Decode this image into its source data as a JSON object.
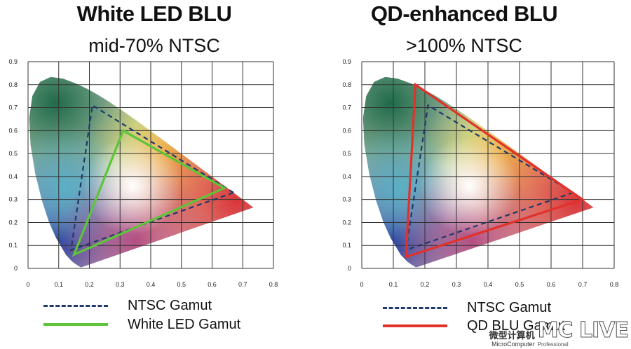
{
  "chart_data": [
    {
      "type": "scatter",
      "title": "White LED BLU",
      "subtitle": "mid-70% NTSC",
      "xlabel": "",
      "ylabel": "",
      "xlim": [
        0,
        0.8
      ],
      "ylim": [
        0,
        0.9
      ],
      "x_ticks": [
        "0",
        "0.1",
        "0.2",
        "0.3",
        "0.4",
        "0.5",
        "0.6",
        "0.7",
        "0.8"
      ],
      "y_ticks": [
        "0",
        "0.1",
        "0.2",
        "0.3",
        "0.4",
        "0.5",
        "0.6",
        "0.7",
        "0.8",
        "0.9"
      ],
      "grid": true,
      "series": [
        {
          "name": "NTSC Gamut",
          "style": "dashed",
          "color": "#1f3a6b",
          "points": [
            [
              0.67,
              0.33
            ],
            [
              0.21,
              0.71
            ],
            [
              0.14,
              0.08
            ]
          ]
        },
        {
          "name": "White LED Gamut",
          "style": "solid",
          "color": "#5fc43a",
          "points": [
            [
              0.64,
              0.35
            ],
            [
              0.31,
              0.6
            ],
            [
              0.15,
              0.06
            ]
          ]
        }
      ],
      "legend_position": "bottom"
    },
    {
      "type": "scatter",
      "title": "QD-enhanced BLU",
      "subtitle": ">100% NTSC",
      "xlabel": "",
      "ylabel": "",
      "xlim": [
        0,
        0.8
      ],
      "ylim": [
        0,
        0.9
      ],
      "x_ticks": [
        "0",
        "0.1",
        "0.2",
        "0.3",
        "0.4",
        "0.5",
        "0.6",
        "0.7",
        "0.8"
      ],
      "y_ticks": [
        "0",
        "0.1",
        "0.2",
        "0.3",
        "0.4",
        "0.5",
        "0.6",
        "0.7",
        "0.8",
        "0.9"
      ],
      "grid": true,
      "series": [
        {
          "name": "NTSC Gamut",
          "style": "dashed",
          "color": "#1f3a6b",
          "points": [
            [
              0.67,
              0.33
            ],
            [
              0.21,
              0.71
            ],
            [
              0.14,
              0.08
            ]
          ]
        },
        {
          "name": "QD BLU Gamut",
          "style": "solid",
          "color": "#e0322b",
          "points": [
            [
              0.7,
              0.3
            ],
            [
              0.17,
              0.8
            ],
            [
              0.14,
              0.05
            ]
          ]
        }
      ],
      "legend_position": "bottom"
    }
  ],
  "watermark": {
    "logo": "MC LIVE",
    "chinese": "微型计算机",
    "english": "MicroComputer",
    "sub": "Professional"
  }
}
